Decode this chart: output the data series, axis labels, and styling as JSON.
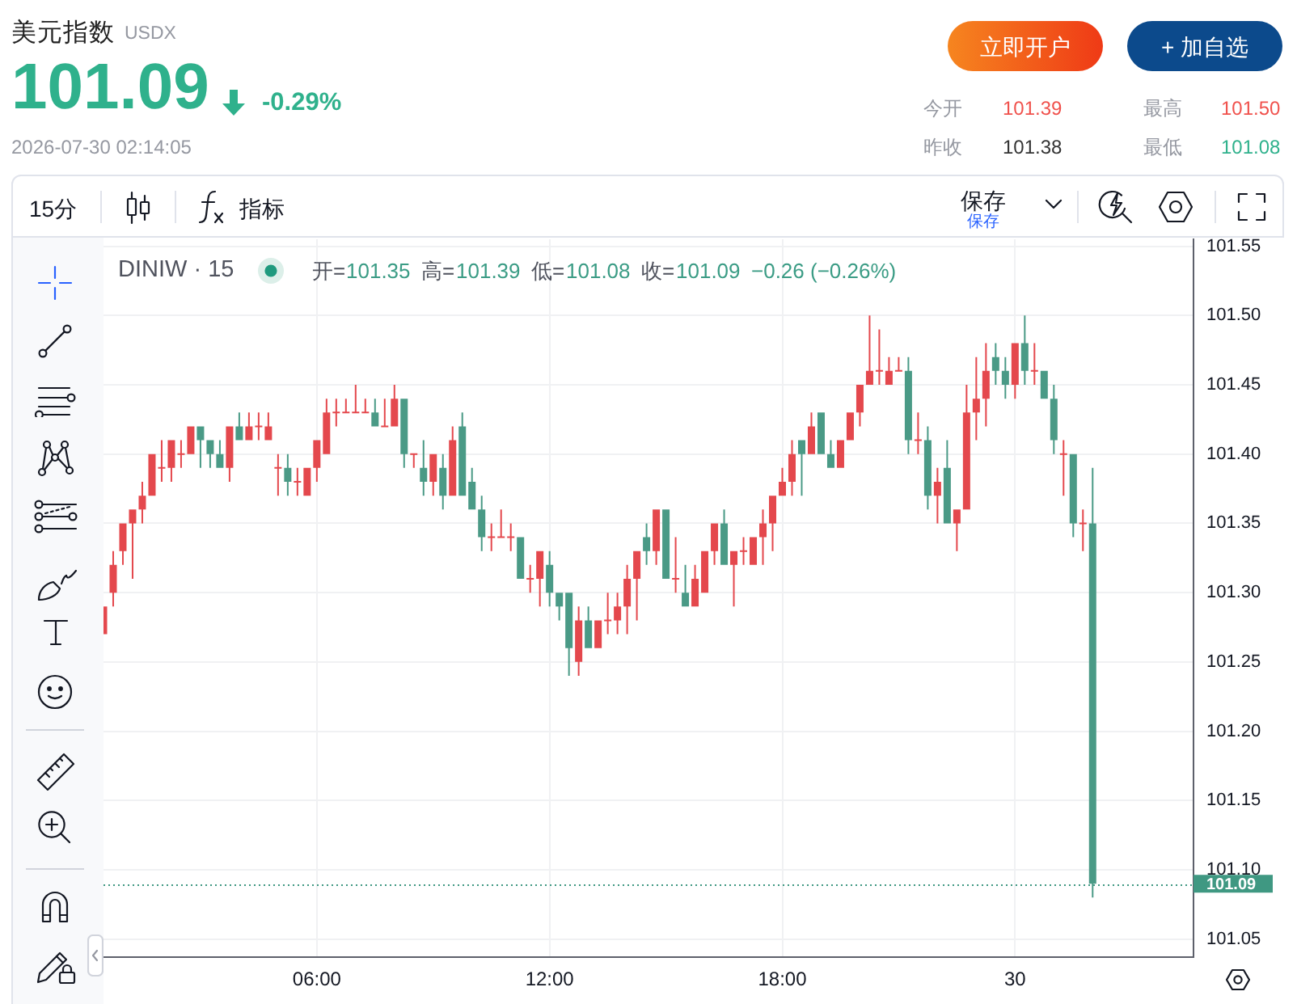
{
  "chart_data": {
    "type": "candlestick",
    "title": "美元指数",
    "subtitle": "USDX",
    "annotations": [
      "101.09",
      "-0.29%",
      "2026-07-30 02:14:05",
      "立即开户",
      "+ 加自选",
      "今开",
      "101.39",
      "最高",
      "101.50",
      "昨收",
      "101.38",
      "最低",
      "101.08",
      "15分",
      "指标",
      "保存",
      "保存",
      "DINIW · 15",
      "开=",
      "101.35",
      "高=",
      "101.39",
      "低=",
      "101.08",
      "收=",
      "101.09",
      "−0.26 (−0.26%)"
    ],
    "x": [
      "2026-07-29T00:30",
      "2026-07-29T00:45",
      "2026-07-29T01:00",
      "2026-07-29T01:15",
      "2026-07-29T01:30",
      "2026-07-29T01:45",
      "2026-07-29T02:00",
      "2026-07-29T02:15",
      "2026-07-29T02:30",
      "2026-07-29T02:45",
      "2026-07-29T03:00",
      "2026-07-29T03:15",
      "2026-07-29T03:30",
      "2026-07-29T03:45",
      "2026-07-29T04:00",
      "2026-07-29T04:15",
      "2026-07-29T04:30",
      "2026-07-29T04:45",
      "2026-07-29T05:00",
      "2026-07-29T05:15",
      "2026-07-29T05:30",
      "2026-07-29T05:45",
      "2026-07-29T06:00",
      "2026-07-29T06:15",
      "2026-07-29T06:30",
      "2026-07-29T06:45",
      "2026-07-29T07:00",
      "2026-07-29T07:15",
      "2026-07-29T07:30",
      "2026-07-29T07:45",
      "2026-07-29T08:00",
      "2026-07-29T08:15",
      "2026-07-29T08:30",
      "2026-07-29T08:45",
      "2026-07-29T09:00",
      "2026-07-29T09:15",
      "2026-07-29T09:30",
      "2026-07-29T09:45",
      "2026-07-29T10:00",
      "2026-07-29T10:15",
      "2026-07-29T10:30",
      "2026-07-29T10:45",
      "2026-07-29T11:00",
      "2026-07-29T11:15",
      "2026-07-29T11:30",
      "2026-07-29T11:45",
      "2026-07-29T12:00",
      "2026-07-29T12:15",
      "2026-07-29T12:30",
      "2026-07-29T12:45",
      "2026-07-29T13:00",
      "2026-07-29T13:15",
      "2026-07-29T13:30",
      "2026-07-29T13:45",
      "2026-07-29T14:00",
      "2026-07-29T14:15",
      "2026-07-29T14:30",
      "2026-07-29T14:45",
      "2026-07-29T15:00",
      "2026-07-29T15:15",
      "2026-07-29T15:30",
      "2026-07-29T15:45",
      "2026-07-29T16:00",
      "2026-07-29T16:15",
      "2026-07-29T16:30",
      "2026-07-29T16:45",
      "2026-07-29T17:00",
      "2026-07-29T17:15",
      "2026-07-29T17:30",
      "2026-07-29T17:45",
      "2026-07-29T18:00",
      "2026-07-29T18:15",
      "2026-07-29T18:30",
      "2026-07-29T18:45",
      "2026-07-29T19:00",
      "2026-07-29T19:15",
      "2026-07-29T19:30",
      "2026-07-29T19:45",
      "2026-07-29T20:00",
      "2026-07-29T20:15",
      "2026-07-29T20:30",
      "2026-07-29T20:45",
      "2026-07-29T21:00",
      "2026-07-29T21:15",
      "2026-07-29T21:30",
      "2026-07-29T21:45",
      "2026-07-29T22:00",
      "2026-07-29T22:15",
      "2026-07-29T22:30",
      "2026-07-29T22:45",
      "2026-07-29T23:00",
      "2026-07-29T23:15",
      "2026-07-29T23:30",
      "2026-07-29T23:45",
      "2026-07-30T00:00",
      "2026-07-30T00:15",
      "2026-07-30T00:30",
      "2026-07-30T00:45",
      "2026-07-30T01:00",
      "2026-07-30T01:15",
      "2026-07-30T01:30",
      "2026-07-30T01:45",
      "2026-07-30T02:00"
    ],
    "xlim": [
      "2026-07-29T00:30",
      "2026-07-30T04:36"
    ],
    "xticks": [
      {
        "value": "2026-07-29T06:00",
        "label": "06:00"
      },
      {
        "value": "2026-07-29T12:00",
        "label": "12:00"
      },
      {
        "value": "2026-07-29T18:00",
        "label": "18:00"
      },
      {
        "value": "2026-07-30T00:00",
        "label": "30"
      }
    ],
    "ylim": [
      101.037,
      101.555
    ],
    "yticks": [
      101.05,
      {
        "value": 101.1,
        "label": "101.10"
      },
      101.15,
      {
        "value": 101.2,
        "label": "101.20"
      },
      101.25,
      {
        "value": 101.3,
        "label": "101.30"
      },
      101.35,
      {
        "value": 101.4,
        "label": "101.40"
      },
      101.45,
      {
        "value": 101.5,
        "label": "101.50"
      },
      101.55
    ],
    "ohlc": [
      [
        101.27,
        101.29,
        101.27,
        101.29
      ],
      [
        101.3,
        101.33,
        101.29,
        101.32
      ],
      [
        101.33,
        101.35,
        101.32,
        101.35
      ],
      [
        101.35,
        101.36,
        101.31,
        101.36
      ],
      [
        101.36,
        101.38,
        101.35,
        101.37
      ],
      [
        101.37,
        101.4,
        101.37,
        101.4
      ],
      [
        101.39,
        101.41,
        101.38,
        101.39
      ],
      [
        101.39,
        101.41,
        101.38,
        101.41
      ],
      [
        101.4,
        101.41,
        101.39,
        101.4
      ],
      [
        101.4,
        101.42,
        101.4,
        101.42
      ],
      [
        101.42,
        101.42,
        101.39,
        101.41
      ],
      [
        101.41,
        101.41,
        101.39,
        101.4
      ],
      [
        101.4,
        101.41,
        101.39,
        101.39
      ],
      [
        101.39,
        101.42,
        101.38,
        101.42
      ],
      [
        101.42,
        101.43,
        101.41,
        101.41
      ],
      [
        101.41,
        101.43,
        101.41,
        101.42
      ],
      [
        101.42,
        101.43,
        101.41,
        101.42
      ],
      [
        101.41,
        101.43,
        101.41,
        101.42
      ],
      [
        101.39,
        101.4,
        101.37,
        101.39
      ],
      [
        101.39,
        101.4,
        101.37,
        101.38
      ],
      [
        101.38,
        101.39,
        101.37,
        101.38
      ],
      [
        101.37,
        101.39,
        101.37,
        101.39
      ],
      [
        101.39,
        101.41,
        101.38,
        101.41
      ],
      [
        101.4,
        101.44,
        101.4,
        101.43
      ],
      [
        101.43,
        101.44,
        101.42,
        101.43
      ],
      [
        101.43,
        101.44,
        101.43,
        101.43
      ],
      [
        101.43,
        101.45,
        101.43,
        101.43
      ],
      [
        101.43,
        101.44,
        101.43,
        101.43
      ],
      [
        101.43,
        101.44,
        101.42,
        101.42
      ],
      [
        101.42,
        101.44,
        101.42,
        101.42
      ],
      [
        101.42,
        101.45,
        101.42,
        101.44
      ],
      [
        101.44,
        101.44,
        101.39,
        101.4
      ],
      [
        101.4,
        101.4,
        101.39,
        101.4
      ],
      [
        101.39,
        101.41,
        101.37,
        101.38
      ],
      [
        101.38,
        101.4,
        101.37,
        101.4
      ],
      [
        101.39,
        101.4,
        101.36,
        101.37
      ],
      [
        101.37,
        101.42,
        101.37,
        101.41
      ],
      [
        101.42,
        101.43,
        101.37,
        101.37
      ],
      [
        101.38,
        101.39,
        101.36,
        101.36
      ],
      [
        101.36,
        101.37,
        101.33,
        101.34
      ],
      [
        101.34,
        101.35,
        101.33,
        101.34
      ],
      [
        101.34,
        101.36,
        101.34,
        101.34
      ],
      [
        101.34,
        101.35,
        101.33,
        101.34
      ],
      [
        101.34,
        101.34,
        101.31,
        101.31
      ],
      [
        101.31,
        101.32,
        101.3,
        101.31
      ],
      [
        101.31,
        101.33,
        101.29,
        101.33
      ],
      [
        101.32,
        101.33,
        101.29,
        101.3
      ],
      [
        101.3,
        101.3,
        101.28,
        101.29
      ],
      [
        101.3,
        101.3,
        101.24,
        101.26
      ],
      [
        101.25,
        101.29,
        101.24,
        101.28
      ],
      [
        101.28,
        101.29,
        101.26,
        101.26
      ],
      [
        101.26,
        101.28,
        101.26,
        101.28
      ],
      [
        101.28,
        101.3,
        101.27,
        101.28
      ],
      [
        101.28,
        101.3,
        101.27,
        101.29
      ],
      [
        101.29,
        101.32,
        101.27,
        101.31
      ],
      [
        101.31,
        101.33,
        101.28,
        101.33
      ],
      [
        101.34,
        101.35,
        101.32,
        101.33
      ],
      [
        101.33,
        101.36,
        101.32,
        101.36
      ],
      [
        101.36,
        101.36,
        101.31,
        101.31
      ],
      [
        101.31,
        101.34,
        101.3,
        101.31
      ],
      [
        101.3,
        101.32,
        101.29,
        101.29
      ],
      [
        101.29,
        101.32,
        101.29,
        101.31
      ],
      [
        101.3,
        101.33,
        101.3,
        101.33
      ],
      [
        101.33,
        101.35,
        101.32,
        101.35
      ],
      [
        101.35,
        101.36,
        101.32,
        101.32
      ],
      [
        101.32,
        101.33,
        101.29,
        101.33
      ],
      [
        101.33,
        101.34,
        101.32,
        101.33
      ],
      [
        101.32,
        101.34,
        101.32,
        101.34
      ],
      [
        101.34,
        101.36,
        101.32,
        101.35
      ],
      [
        101.35,
        101.37,
        101.33,
        101.37
      ],
      [
        101.37,
        101.39,
        101.37,
        101.38
      ],
      [
        101.38,
        101.41,
        101.37,
        101.4
      ],
      [
        101.41,
        101.41,
        101.37,
        101.4
      ],
      [
        101.4,
        101.43,
        101.4,
        101.42
      ],
      [
        101.43,
        101.43,
        101.4,
        101.4
      ],
      [
        101.4,
        101.41,
        101.39,
        101.39
      ],
      [
        101.39,
        101.41,
        101.39,
        101.41
      ],
      [
        101.41,
        101.43,
        101.41,
        101.43
      ],
      [
        101.43,
        101.45,
        101.42,
        101.45
      ],
      [
        101.45,
        101.5,
        101.45,
        101.46
      ],
      [
        101.46,
        101.49,
        101.45,
        101.46
      ],
      [
        101.45,
        101.47,
        101.45,
        101.46
      ],
      [
        101.46,
        101.47,
        101.46,
        101.46
      ],
      [
        101.46,
        101.47,
        101.4,
        101.41
      ],
      [
        101.41,
        101.43,
        101.4,
        101.41
      ],
      [
        101.41,
        101.42,
        101.36,
        101.37
      ],
      [
        101.37,
        101.39,
        101.35,
        101.38
      ],
      [
        101.39,
        101.41,
        101.35,
        101.35
      ],
      [
        101.35,
        101.36,
        101.33,
        101.36
      ],
      [
        101.36,
        101.45,
        101.36,
        101.43
      ],
      [
        101.43,
        101.47,
        101.41,
        101.44
      ],
      [
        101.44,
        101.48,
        101.42,
        101.46
      ],
      [
        101.47,
        101.48,
        101.45,
        101.46
      ],
      [
        101.46,
        101.47,
        101.44,
        101.45
      ],
      [
        101.45,
        101.48,
        101.44,
        101.48
      ],
      [
        101.48,
        101.5,
        101.45,
        101.46
      ],
      [
        101.46,
        101.48,
        101.45,
        101.46
      ],
      [
        101.46,
        101.46,
        101.44,
        101.44
      ],
      [
        101.44,
        101.45,
        101.4,
        101.41
      ],
      [
        101.4,
        101.41,
        101.37,
        101.4
      ],
      [
        101.4,
        101.4,
        101.34,
        101.35
      ],
      [
        101.35,
        101.36,
        101.33,
        101.35
      ],
      [
        101.35,
        101.39,
        101.08,
        101.09
      ]
    ],
    "colors": [
      "#e4484d",
      "#e4484d",
      "#e4484d",
      "#e4484d",
      "#e4484d",
      "#e4484d",
      "#e4484d",
      "#e4484d",
      "#e4484d",
      "#e4484d",
      "#4a9a86",
      "#4a9a86",
      "#4a9a86",
      "#e4484d",
      "#4a9a86",
      "#e4484d",
      "#e4484d",
      "#e4484d",
      "#e4484d",
      "#4a9a86",
      "#e4484d",
      "#e4484d",
      "#e4484d",
      "#e4484d",
      "#e4484d",
      "#e4484d",
      "#e4484d",
      "#e4484d",
      "#4a9a86",
      "#e4484d",
      "#e4484d",
      "#4a9a86",
      "#e4484d",
      "#4a9a86",
      "#e4484d",
      "#4a9a86",
      "#e4484d",
      "#4a9a86",
      "#4a9a86",
      "#4a9a86",
      "#e4484d",
      "#e4484d",
      "#e4484d",
      "#4a9a86",
      "#e4484d",
      "#e4484d",
      "#4a9a86",
      "#4a9a86",
      "#4a9a86",
      "#e4484d",
      "#4a9a86",
      "#e4484d",
      "#e4484d",
      "#e4484d",
      "#e4484d",
      "#e4484d",
      "#4a9a86",
      "#e4484d",
      "#4a9a86",
      "#e4484d",
      "#4a9a86",
      "#e4484d",
      "#e4484d",
      "#e4484d",
      "#4a9a86",
      "#e4484d",
      "#e4484d",
      "#e4484d",
      "#e4484d",
      "#e4484d",
      "#e4484d",
      "#e4484d",
      "#4a9a86",
      "#e4484d",
      "#4a9a86",
      "#4a9a86",
      "#e4484d",
      "#e4484d",
      "#e4484d",
      "#e4484d",
      "#e4484d",
      "#e4484d",
      "#e4484d",
      "#4a9a86",
      "#e4484d",
      "#4a9a86",
      "#e4484d",
      "#4a9a86",
      "#e4484d",
      "#e4484d",
      "#e4484d",
      "#e4484d",
      "#4a9a86",
      "#4a9a86",
      "#e4484d",
      "#4a9a86",
      "#e4484d",
      "#4a9a86",
      "#4a9a86",
      "#e4484d",
      "#4a9a86",
      "#e4484d",
      "#4a9a86"
    ],
    "grid": true,
    "ref_lines": [
      {
        "axis": "y",
        "value": 101.09,
        "label": "101.09",
        "color": "#3f9882",
        "line_style": "dotted"
      }
    ]
  }
}
